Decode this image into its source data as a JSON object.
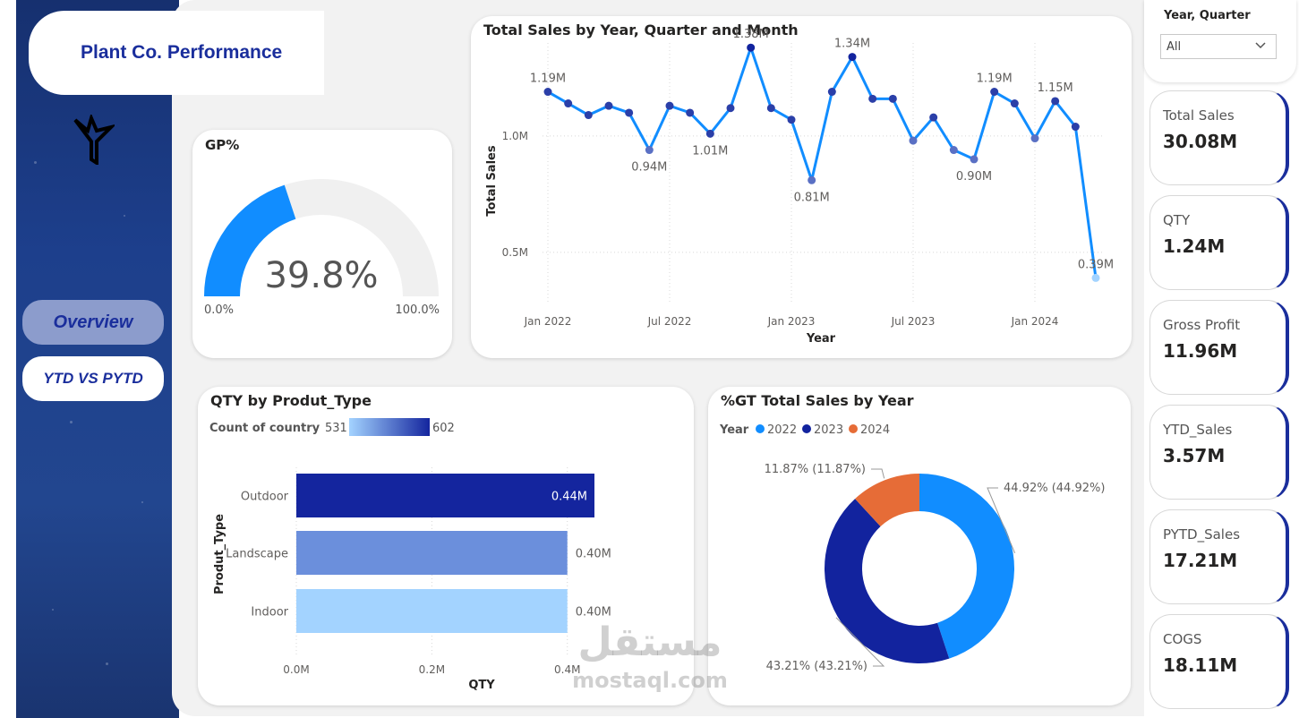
{
  "app": {
    "title": "Plant Co. Performance",
    "nav": [
      {
        "label": "Overview",
        "active": true
      },
      {
        "label": "YTD VS PYTD",
        "active": false
      }
    ]
  },
  "slicer": {
    "label": "Year, Quarter",
    "value": "All"
  },
  "kpis": [
    {
      "label": "Total Sales",
      "value": "30.08M"
    },
    {
      "label": "QTY",
      "value": "1.24M"
    },
    {
      "label": "Gross Profit",
      "value": "11.96M"
    },
    {
      "label": "YTD_Sales",
      "value": "3.57M"
    },
    {
      "label": "PYTD_Sales",
      "value": "17.21M"
    },
    {
      "label": "COGS",
      "value": "18.11M"
    }
  ],
  "gp": {
    "title": "GP%",
    "value_label": "39.8%",
    "value": 39.8,
    "min_label": "0.0%",
    "max_label": "100.0%",
    "fill_color": "#118dff",
    "track_color": "#f0f0f0"
  },
  "watermark": {
    "arabic": "مستقل",
    "latin": "mostaql.com"
  },
  "chart_data": [
    {
      "type": "line",
      "title": "Total Sales by Year, Quarter and Month",
      "xlabel": "Year",
      "ylabel": "Total Sales",
      "x_ticks": [
        "Jan 2022",
        "Jul 2022",
        "Jan 2023",
        "Jul 2023",
        "Jan 2024"
      ],
      "y_ticks": [
        "0.5M",
        "1.0M"
      ],
      "ylim": [
        0.38,
        1.4
      ],
      "color": "#118dff",
      "x": [
        "2022-01",
        "2022-02",
        "2022-03",
        "2022-04",
        "2022-05",
        "2022-06",
        "2022-07",
        "2022-08",
        "2022-09",
        "2022-10",
        "2022-11",
        "2022-12",
        "2023-01",
        "2023-02",
        "2023-03",
        "2023-04",
        "2023-05",
        "2023-06",
        "2023-07",
        "2023-08",
        "2023-09",
        "2023-10",
        "2023-11",
        "2023-12",
        "2024-01",
        "2024-02",
        "2024-03",
        "2024-04"
      ],
      "values": [
        1.19,
        1.14,
        1.09,
        1.13,
        1.1,
        0.94,
        1.13,
        1.1,
        1.01,
        1.12,
        1.38,
        1.12,
        1.07,
        0.81,
        1.19,
        1.34,
        1.16,
        1.16,
        0.98,
        1.08,
        0.94,
        0.9,
        1.19,
        1.14,
        0.99,
        1.15,
        1.04,
        0.39
      ],
      "data_labels": [
        "1.19M",
        "",
        "",
        "",
        "",
        "0.94M",
        "",
        "",
        "1.01M",
        "",
        "1.38M",
        "",
        "",
        "0.81M",
        "",
        "1.34M",
        "",
        "",
        "",
        "",
        "",
        "0.90M",
        "1.19M",
        "",
        "",
        "1.15M",
        "",
        "0.39M"
      ]
    },
    {
      "type": "bar",
      "orientation": "horizontal",
      "title": "QTY by Produt_Type",
      "xlabel": "QTY",
      "ylabel": "Produt_Type",
      "legend": {
        "title": "Count of country",
        "min_label": "531",
        "max_label": "602"
      },
      "categories": [
        "Outdoor",
        "Landscape",
        "Indoor"
      ],
      "values": [
        0.44,
        0.4,
        0.4
      ],
      "data_labels": [
        "0.44M",
        "0.40M",
        "0.40M"
      ],
      "colors": [
        "#14259e",
        "#6b8fdc",
        "#a3d3ff"
      ],
      "x_ticks": [
        "0.0M",
        "0.2M",
        "0.4M"
      ],
      "xlim": [
        0,
        0.44
      ]
    },
    {
      "type": "pie",
      "title": "%GT Total Sales by Year",
      "legend_title": "Year",
      "labels": [
        "2022",
        "2023",
        "2024"
      ],
      "values": [
        44.92,
        43.21,
        11.87
      ],
      "colors": [
        "#118dff",
        "#12239e",
        "#e66c37"
      ],
      "data_labels": [
        "44.92% (44.92%)",
        "43.21% (43.21%)",
        "11.87% (11.87%)"
      ]
    }
  ]
}
